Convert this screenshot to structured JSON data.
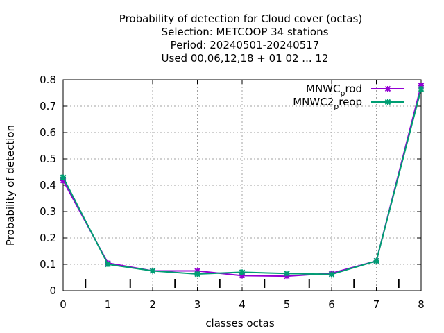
{
  "chart_data": {
    "type": "line",
    "title_lines": [
      "Probability of detection  for Cloud cover (octas)",
      "Selection: METCOOP     34 stations",
      "Period: 20240501-20240517",
      "Used  00,06,12,18  + 01 02 ... 12"
    ],
    "xlabel": "classes octas",
    "ylabel": "Probability of detection",
    "x": [
      0,
      1,
      2,
      3,
      4,
      5,
      6,
      7,
      8
    ],
    "xlim": [
      0,
      8
    ],
    "ylim": [
      0,
      0.8
    ],
    "xticks": [
      "0",
      "1",
      "2",
      "3",
      "4",
      "5",
      "6",
      "7",
      "8"
    ],
    "yticks": [
      "0",
      "0.1",
      "0.2",
      "0.3",
      "0.4",
      "0.5",
      "0.6",
      "0.7",
      "0.8"
    ],
    "minor_ticks_x": [
      0.5,
      1.5,
      2.5,
      3.5,
      4.5,
      5.5,
      6.5,
      7.5
    ],
    "grid": true,
    "legend_position": "top-right",
    "series": [
      {
        "name": "MNWC_prod",
        "name_main": "MNWC",
        "name_sub": "p",
        "name_rest": "rod",
        "color": "#9400d3",
        "values": [
          0.418,
          0.105,
          0.075,
          0.075,
          0.057,
          0.055,
          0.066,
          0.113,
          0.778
        ]
      },
      {
        "name": "MNWC2_preop",
        "name_main": "MNWC2",
        "name_sub": "p",
        "name_rest": "reop",
        "color": "#009e73",
        "values": [
          0.43,
          0.1,
          0.075,
          0.063,
          0.07,
          0.065,
          0.062,
          0.113,
          0.765
        ]
      }
    ]
  }
}
